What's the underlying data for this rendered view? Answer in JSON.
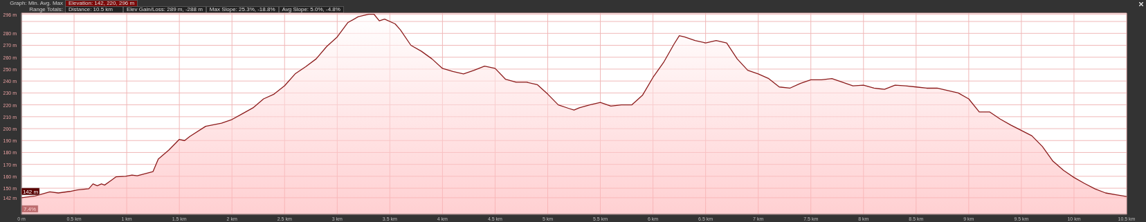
{
  "chart_data": {
    "type": "area",
    "annotations": [
      "Graph: Min. Avg. Max",
      "Elevation: 142, 220, 296 m",
      "Range Totals:",
      "Distance: 10.5 km",
      "Elev Gain/Loss: 289 m, -288 m",
      "Max Slope: 25.3%, -18.8%",
      "Avg Slope: 5.0%, -4.8%",
      "7.4%",
      {
        "text": "142 m",
        "x": 0,
        "y": 142
      }
    ],
    "x": [
      0,
      0.13,
      0.27,
      0.35,
      0.46,
      0.53,
      0.64,
      0.68,
      0.72,
      0.76,
      0.79,
      0.86,
      0.9,
      0.99,
      1.05,
      1.1,
      1.25,
      1.3,
      1.4,
      1.5,
      1.55,
      1.6,
      1.75,
      1.9,
      2.0,
      2.1,
      2.2,
      2.3,
      2.4,
      2.5,
      2.6,
      2.7,
      2.8,
      2.9,
      3.0,
      3.1,
      3.2,
      3.3,
      3.35,
      3.4,
      3.45,
      3.55,
      3.6,
      3.7,
      3.8,
      3.9,
      4.0,
      4.1,
      4.2,
      4.3,
      4.4,
      4.5,
      4.6,
      4.7,
      4.8,
      4.9,
      5.0,
      5.1,
      5.2,
      5.25,
      5.3,
      5.4,
      5.5,
      5.6,
      5.7,
      5.8,
      5.9,
      6.0,
      6.1,
      6.2,
      6.25,
      6.3,
      6.4,
      6.5,
      6.6,
      6.7,
      6.8,
      6.9,
      7.0,
      7.1,
      7.2,
      7.3,
      7.4,
      7.5,
      7.6,
      7.7,
      7.8,
      7.9,
      8.0,
      8.1,
      8.2,
      8.3,
      8.4,
      8.5,
      8.6,
      8.7,
      8.8,
      8.9,
      9.0,
      9.1,
      9.2,
      9.3,
      9.4,
      9.5,
      9.6,
      9.7,
      9.8,
      9.9,
      10.0,
      10.1,
      10.2,
      10.3,
      10.4,
      10.5
    ],
    "series": [
      {
        "color": "#8b1a1a",
        "values": [
          142,
          143.5,
          147,
          146,
          147.3,
          148.5,
          149.6,
          153.6,
          152,
          153.6,
          152.6,
          157,
          159.6,
          160,
          161,
          160.5,
          164,
          174.5,
          182,
          191,
          190,
          193.5,
          202,
          204.6,
          207.7,
          212.6,
          217.5,
          225,
          229,
          236,
          246,
          252,
          258.6,
          269,
          277,
          289,
          294,
          296,
          296,
          290.5,
          292,
          288,
          283,
          270,
          265,
          258.6,
          250.6,
          248,
          246,
          249,
          252.5,
          250.6,
          241.4,
          239,
          239,
          237,
          229,
          220,
          217,
          215.6,
          217.5,
          220,
          222,
          219,
          220,
          220,
          228,
          243,
          255.5,
          271,
          278,
          277,
          274,
          272,
          274,
          272,
          258.6,
          249,
          246,
          242,
          235,
          234,
          238,
          241,
          241,
          242,
          239,
          236,
          236.5,
          234,
          233,
          236.5,
          236,
          235,
          234,
          234,
          232,
          230,
          225,
          214,
          214,
          208,
          203,
          198.5,
          194,
          185,
          172.7,
          165,
          159,
          154,
          149.4,
          146,
          144.5,
          143
        ]
      }
    ],
    "xlim": [
      0,
      10.5
    ],
    "xticks": [
      {
        "value": 0,
        "label": "0 m"
      },
      {
        "value": 0.5,
        "label": "0.5 km"
      },
      {
        "value": 1,
        "label": "1 km"
      },
      {
        "value": 1.5,
        "label": "1.5 km"
      },
      {
        "value": 2,
        "label": "2 km"
      },
      {
        "value": 2.5,
        "label": "2.5 km"
      },
      {
        "value": 3,
        "label": "3 km"
      },
      {
        "value": 3.5,
        "label": "3.5 km"
      },
      {
        "value": 4,
        "label": "4 km"
      },
      {
        "value": 4.5,
        "label": "4.5 km"
      },
      {
        "value": 5,
        "label": "5 km"
      },
      {
        "value": 5.5,
        "label": "5.5 km"
      },
      {
        "value": 6,
        "label": "6 km"
      },
      {
        "value": 6.5,
        "label": "6.5 km"
      },
      {
        "value": 7,
        "label": "7 km"
      },
      {
        "value": 7.5,
        "label": "7.5 km"
      },
      {
        "value": 8,
        "label": "8 km"
      },
      {
        "value": 8.5,
        "label": "8.5 km"
      },
      {
        "value": 9,
        "label": "9 km"
      },
      {
        "value": 9.5,
        "label": "9.5 km"
      },
      {
        "value": 10,
        "label": "10 km"
      },
      {
        "value": 10.5,
        "label": "10.5 km"
      }
    ],
    "ylim": [
      128,
      297
    ],
    "yticks": [
      {
        "value": 142,
        "label": "142 m"
      },
      {
        "value": 150,
        "label": "150 m"
      },
      {
        "value": 160,
        "label": "160 m"
      },
      {
        "value": 170,
        "label": "170 m"
      },
      {
        "value": 180,
        "label": "180 m"
      },
      {
        "value": 190,
        "label": "190 m"
      },
      {
        "value": 200,
        "label": "200 m"
      },
      {
        "value": 210,
        "label": "210 m"
      },
      {
        "value": 220,
        "label": "220 m"
      },
      {
        "value": 230,
        "label": "230 m"
      },
      {
        "value": 240,
        "label": "240 m"
      },
      {
        "value": 250,
        "label": "250 m"
      },
      {
        "value": 260,
        "label": "260 m"
      },
      {
        "value": 270,
        "label": "270 m"
      },
      {
        "value": 280,
        "label": "280 m"
      },
      {
        "value": 290,
        "label": null
      },
      {
        "value": 296,
        "label": "296 m"
      }
    ],
    "grid": true,
    "marker": "none",
    "line_style": "solid"
  }
}
